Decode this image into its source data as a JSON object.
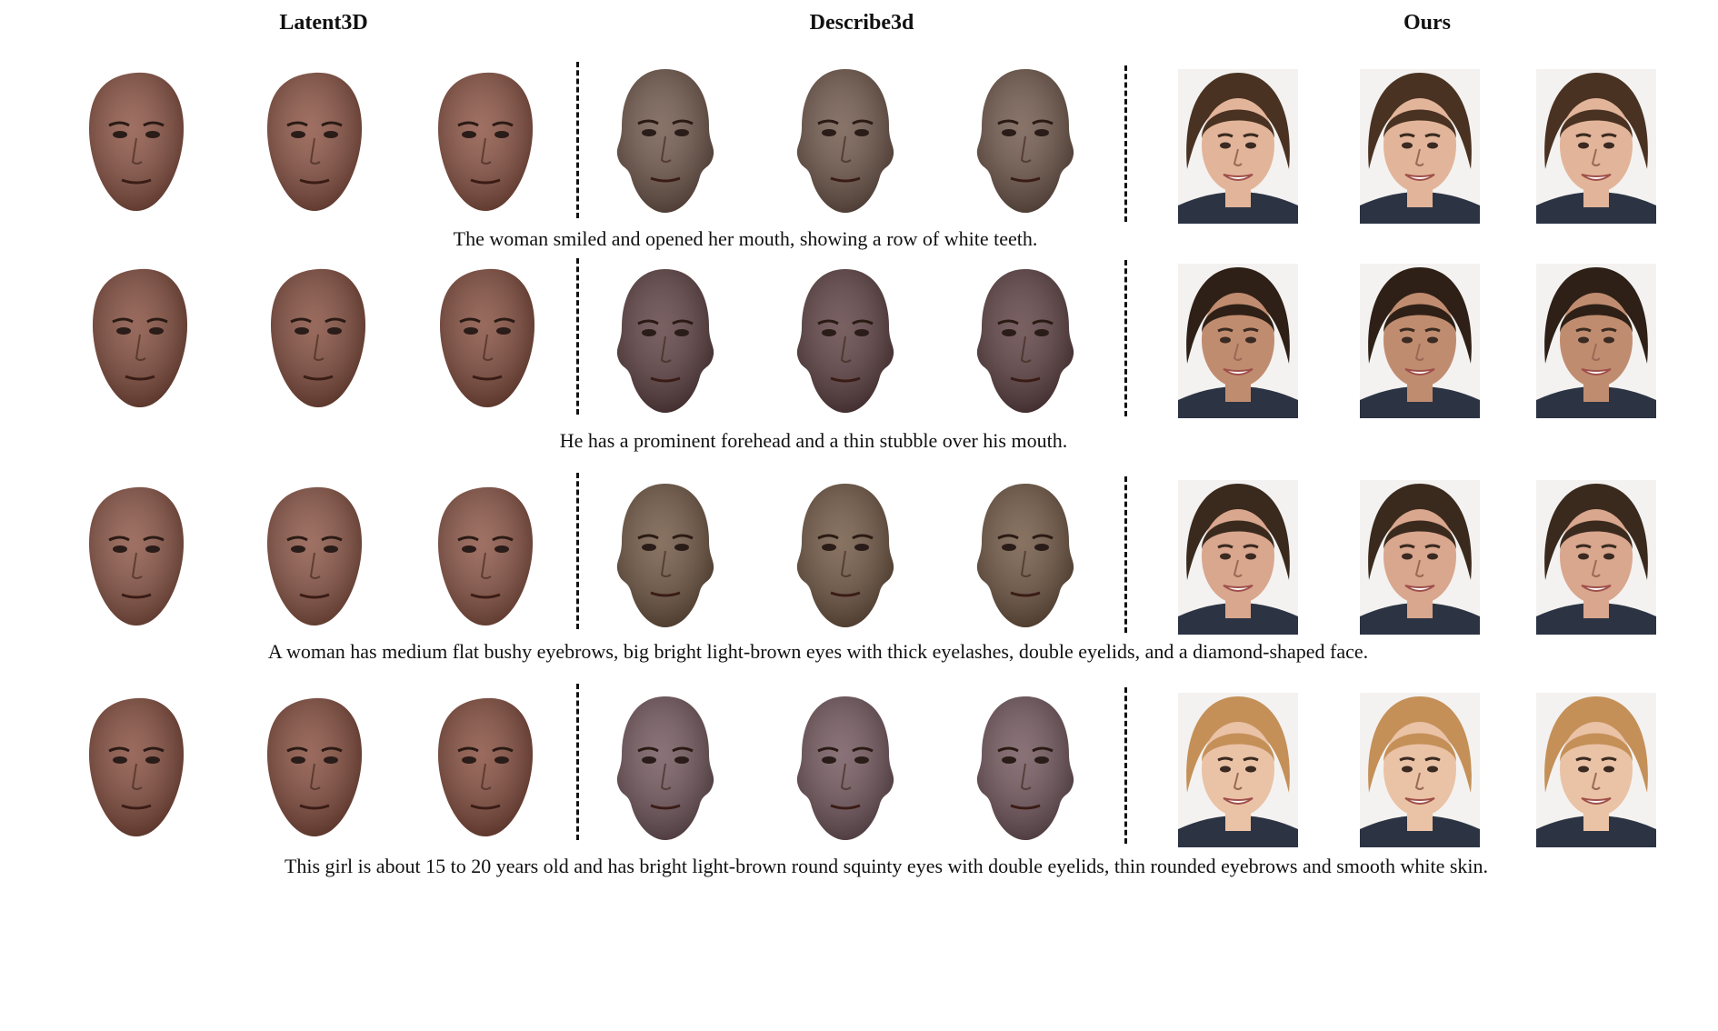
{
  "headers": {
    "col1": "Latent3D",
    "col2": "Describe3d",
    "col3": "Ours"
  },
  "rows": [
    {
      "caption": "The woman smiled and opened her mouth, showing a row of white teeth.",
      "latent3d_skin": "#8a5040",
      "describe3d_skin": "#6e5548",
      "ours_hair": "#4a3222",
      "ours_skin": "#e2b59a"
    },
    {
      "caption": "He has a prominent forehead and a thin stubble over his mouth.",
      "latent3d_skin": "#824a3a",
      "describe3d_skin": "#5c3e40",
      "ours_hair": "#2e2016",
      "ours_skin": "#c08c70"
    },
    {
      "caption": "A woman has medium flat bushy eyebrows, big bright light-brown eyes with thick eyelashes, double eyelids, and a diamond-shaped face.",
      "latent3d_skin": "#8a5242",
      "describe3d_skin": "#6e5440",
      "ours_hair": "#3a2a1e",
      "ours_skin": "#d9a68e"
    },
    {
      "caption": "This girl is about 15 to 20 years old and has bright light-brown round squinty eyes with double eyelids, thin rounded eyebrows and smooth white skin.",
      "latent3d_skin": "#844a3a",
      "describe3d_skin": "#70545a",
      "ours_hair": "#c49058",
      "ours_skin": "#eac2a6"
    }
  ]
}
